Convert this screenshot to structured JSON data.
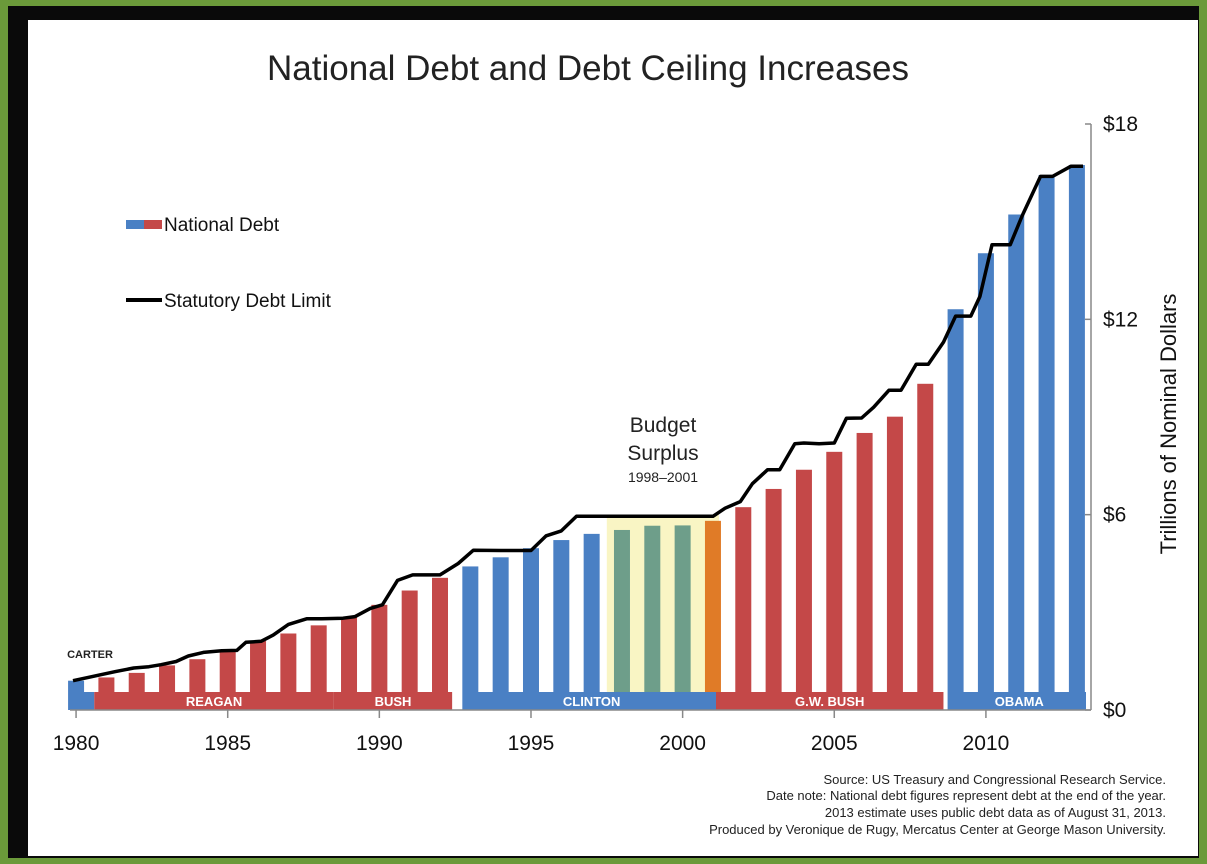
{
  "chart_data": {
    "type": "bar",
    "title": "National Debt and Debt Ceiling Increases",
    "ylabel": "Trillions of Nominal Dollars",
    "ylim": [
      0,
      18
    ],
    "y_ticks": [
      "$0",
      "$6",
      "$12",
      "$18"
    ],
    "y_tick_values": [
      0,
      6,
      12,
      18
    ],
    "x_ticks": [
      "1980",
      "1985",
      "1990",
      "1995",
      "2000",
      "2005",
      "2010"
    ],
    "x_tick_values": [
      1980,
      1985,
      1990,
      1995,
      2000,
      2005,
      2010
    ],
    "xlim": [
      1979.8,
      2013.3
    ],
    "y_axis_side": "right",
    "grid": false,
    "legend_position": "upper-left",
    "colors": {
      "blue": "#4a80c4",
      "red": "#c44848",
      "green": "#6e9e8a",
      "orange": "#e07b27",
      "surplus_highlight": "#f9f5c4",
      "limit_line": "#000000"
    },
    "series": [
      {
        "name": "National Debt",
        "kind": "bar",
        "x": [
          1980,
          1981,
          1982,
          1983,
          1984,
          1985,
          1986,
          1987,
          1988,
          1989,
          1990,
          1991,
          1992,
          1993,
          1994,
          1995,
          1996,
          1997,
          1998,
          1999,
          2000,
          2001,
          2002,
          2003,
          2004,
          2005,
          2006,
          2007,
          2008,
          2009,
          2010,
          2011,
          2012,
          2013
        ],
        "values": [
          0.9,
          1.0,
          1.14,
          1.37,
          1.56,
          1.82,
          2.12,
          2.35,
          2.6,
          2.86,
          3.23,
          3.67,
          4.06,
          4.41,
          4.69,
          4.97,
          5.22,
          5.41,
          5.53,
          5.66,
          5.67,
          5.81,
          6.23,
          6.79,
          7.38,
          7.93,
          8.51,
          9.01,
          10.02,
          12.31,
          14.03,
          15.22,
          16.43,
          16.74
        ],
        "colors": [
          "blue",
          "red",
          "red",
          "red",
          "red",
          "red",
          "red",
          "red",
          "red",
          "red",
          "red",
          "red",
          "red",
          "blue",
          "blue",
          "blue",
          "blue",
          "blue",
          "green",
          "green",
          "green",
          "orange",
          "red",
          "red",
          "red",
          "red",
          "red",
          "red",
          "red",
          "blue",
          "blue",
          "blue",
          "blue",
          "blue"
        ]
      },
      {
        "name": "Statutory Debt Limit",
        "kind": "step-line",
        "x": [
          1979.9,
          1980.4,
          1980.8,
          1981.3,
          1981.9,
          1982.4,
          1982.8,
          1983.3,
          1983.7,
          1984.2,
          1984.8,
          1985.3,
          1985.6,
          1986.1,
          1986.5,
          1987.0,
          1987.6,
          1988.1,
          1988.8,
          1989.2,
          1989.7,
          1990.1,
          1990.6,
          1991.1,
          1992.0,
          1992.6,
          1993.1,
          1994.0,
          1995.0,
          1995.5,
          1996.0,
          1996.5,
          1997.0,
          1998.0,
          2000.0,
          2001.0,
          2001.4,
          2001.9,
          2002.3,
          2002.8,
          2003.2,
          2003.7,
          2004.0,
          2004.5,
          2005.0,
          2005.4,
          2005.9,
          2006.3,
          2006.8,
          2007.2,
          2007.7,
          2008.1,
          2008.6,
          2009.0,
          2009.5,
          2009.8,
          2010.2,
          2010.8,
          2011.2,
          2011.8,
          2012.2,
          2012.8,
          2013.2
        ],
        "values": [
          0.9,
          1.0,
          1.08,
          1.18,
          1.29,
          1.33,
          1.39,
          1.49,
          1.66,
          1.77,
          1.82,
          1.83,
          2.08,
          2.11,
          2.3,
          2.63,
          2.8,
          2.8,
          2.82,
          2.87,
          3.12,
          3.23,
          3.98,
          4.15,
          4.15,
          4.5,
          4.91,
          4.9,
          4.9,
          5.35,
          5.5,
          5.95,
          5.95,
          5.95,
          5.95,
          5.95,
          6.2,
          6.4,
          6.95,
          7.38,
          7.38,
          8.18,
          8.2,
          8.18,
          8.2,
          8.96,
          8.97,
          9.3,
          9.82,
          9.82,
          10.62,
          10.62,
          11.3,
          12.1,
          12.1,
          12.7,
          14.29,
          14.29,
          15.19,
          16.39,
          16.39,
          16.7,
          16.7
        ]
      }
    ],
    "budget_surplus": {
      "label_line1": "Budget",
      "label_line2": "Surplus",
      "years": "1998–2001",
      "from": 1997.5,
      "to": 2001.2
    },
    "presidents": [
      {
        "name": "CARTER",
        "from": 1979.8,
        "to": 1980.6,
        "color": "blue"
      },
      {
        "name": "REAGAN",
        "from": 1980.6,
        "to": 1988.5,
        "color": "red"
      },
      {
        "name": "BUSH",
        "from": 1988.5,
        "to": 1992.4,
        "color": "red"
      },
      {
        "name": "CLINTON",
        "from": 1992.9,
        "to": 2001.1,
        "color": "blue"
      },
      {
        "name": "G.W. BUSH",
        "from": 2001.1,
        "to": 2008.6,
        "color": "red"
      },
      {
        "name": "OBAMA",
        "from": 2008.9,
        "to": 2013.3,
        "color": "blue"
      }
    ]
  },
  "notes": {
    "source": "Source: US Treasury and Congressional Research Service.",
    "date_note": "Date note: National debt figures represent debt at the end of the year.",
    "estimate_note": "2013 estimate uses public debt data as of August 31, 2013.",
    "producer": "Produced by Veronique de Rugy, Mercatus Center at George Mason University."
  }
}
